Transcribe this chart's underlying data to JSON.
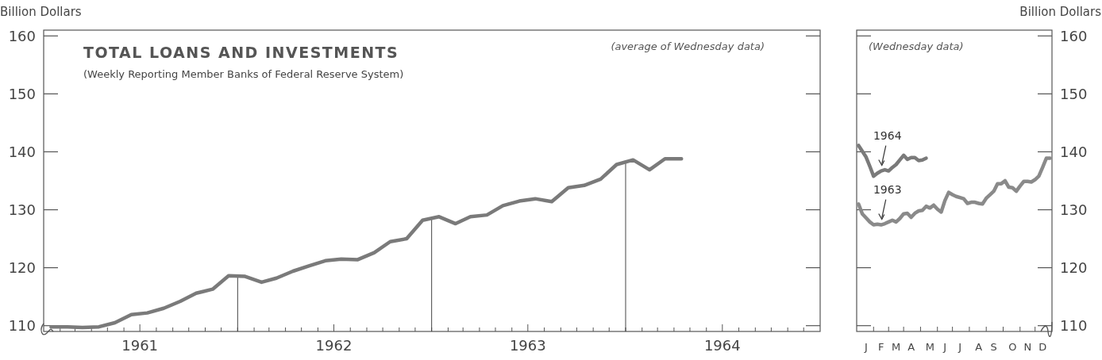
{
  "chart_data": [
    {
      "type": "line",
      "title": "TOTAL LOANS AND INVESTMENTS",
      "subtitle": "(Weekly Reporting Member Banks of Federal Reserve System)",
      "ylabel": "Billion Dollars",
      "annotations": [
        "(average of Wednesday data)"
      ],
      "x": [
        "1961-01-15",
        "1961-02-15",
        "1961-03-15",
        "1961-04-15",
        "1961-05-15",
        "1961-06-15",
        "1961-07-15",
        "1961-08-15",
        "1961-09-15",
        "1961-10-15",
        "1961-11-15",
        "1961-12-15",
        "1962-01-15",
        "1962-02-15",
        "1962-03-15",
        "1962-04-15",
        "1962-05-15",
        "1962-06-15",
        "1962-07-15",
        "1962-08-15",
        "1962-09-15",
        "1962-10-15",
        "1962-11-15",
        "1962-12-15",
        "1963-01-15",
        "1963-02-15",
        "1963-03-15",
        "1963-04-15",
        "1963-05-15",
        "1963-06-15",
        "1963-07-15",
        "1963-08-15",
        "1963-09-15",
        "1963-10-15",
        "1963-11-15",
        "1963-12-15",
        "1964-01-15",
        "1964-02-15",
        "1964-03-15",
        "1964-04-15"
      ],
      "series": [
        {
          "color": "#7a7a7a",
          "values": [
            109.8,
            109.8,
            109.7,
            109.8,
            110.5,
            111.9,
            112.2,
            113.0,
            114.2,
            115.6,
            116.3,
            118.6,
            118.5,
            117.5,
            118.2,
            119.4,
            120.3,
            121.2,
            121.5,
            121.4,
            122.6,
            124.5,
            125.0,
            128.2,
            128.8,
            127.6,
            128.8,
            129.1,
            130.7,
            131.5,
            131.9,
            131.4,
            133.8,
            134.2,
            135.3,
            137.8,
            138.6,
            136.9,
            138.8,
            138.8
          ]
        }
      ],
      "xlim": [
        "1961-01",
        "1965-01"
      ],
      "xticks": [
        {
          "value": "1961-02",
          "label": null
        },
        {
          "value": "1961-03",
          "label": null
        },
        {
          "value": "1961-04",
          "label": null
        },
        {
          "value": "1961-05",
          "label": null
        },
        {
          "value": "1961-06",
          "label": null
        },
        {
          "value": "1961-07",
          "label": "1961"
        },
        {
          "value": "1961-08",
          "label": null
        },
        {
          "value": "1961-09",
          "label": null
        },
        {
          "value": "1961-10",
          "label": null
        },
        {
          "value": "1961-11",
          "label": null
        },
        {
          "value": "1961-12",
          "label": null
        },
        {
          "value": "1962-01",
          "label": null
        },
        {
          "value": "1962-02",
          "label": null
        },
        {
          "value": "1962-03",
          "label": null
        },
        {
          "value": "1962-04",
          "label": null
        },
        {
          "value": "1962-05",
          "label": null
        },
        {
          "value": "1962-06",
          "label": null
        },
        {
          "value": "1962-07",
          "label": "1962"
        },
        {
          "value": "1962-08",
          "label": null
        },
        {
          "value": "1962-09",
          "label": null
        },
        {
          "value": "1962-10",
          "label": null
        },
        {
          "value": "1962-11",
          "label": null
        },
        {
          "value": "1962-12",
          "label": null
        },
        {
          "value": "1963-01",
          "label": null
        },
        {
          "value": "1963-02",
          "label": null
        },
        {
          "value": "1963-03",
          "label": null
        },
        {
          "value": "1963-04",
          "label": null
        },
        {
          "value": "1963-05",
          "label": null
        },
        {
          "value": "1963-06",
          "label": null
        },
        {
          "value": "1963-07",
          "label": "1963"
        },
        {
          "value": "1963-08",
          "label": null
        },
        {
          "value": "1963-09",
          "label": null
        },
        {
          "value": "1963-10",
          "label": null
        },
        {
          "value": "1963-11",
          "label": null
        },
        {
          "value": "1963-12",
          "label": null
        },
        {
          "value": "1964-01",
          "label": null
        },
        {
          "value": "1964-02",
          "label": null
        },
        {
          "value": "1964-03",
          "label": null
        },
        {
          "value": "1964-04",
          "label": null
        },
        {
          "value": "1964-05",
          "label": null
        },
        {
          "value": "1964-06",
          "label": null
        },
        {
          "value": "1964-07",
          "label": "1964"
        },
        {
          "value": "1964-08",
          "label": null
        },
        {
          "value": "1964-09",
          "label": null
        },
        {
          "value": "1964-10",
          "label": null
        },
        {
          "value": "1964-11",
          "label": null
        },
        {
          "value": "1964-12",
          "label": null
        }
      ],
      "ylim": [
        109,
        161
      ],
      "yticks": [
        110,
        120,
        130,
        140,
        150,
        160
      ],
      "ref_lines": [
        {
          "axis": "x",
          "value": "1962-01",
          "color": "#444444"
        },
        {
          "axis": "x",
          "value": "1963-01",
          "color": "#444444"
        },
        {
          "axis": "x",
          "value": "1964-01",
          "color": "#444444"
        }
      ]
    },
    {
      "type": "line",
      "y2label": "Billion Dollars",
      "annotations": [
        "(Wednesday data)",
        "1964",
        "1963"
      ],
      "categories": [
        null,
        null,
        "J",
        null,
        null,
        null,
        "F",
        null,
        null,
        null,
        "M",
        null,
        null,
        null,
        "A",
        null,
        null,
        null,
        null,
        "M",
        null,
        null,
        null,
        "J",
        null,
        null,
        null,
        "J",
        null,
        null,
        null,
        null,
        "A",
        null,
        null,
        null,
        "S",
        null,
        null,
        null,
        null,
        "O",
        null,
        null,
        null,
        "N",
        null,
        null,
        null,
        "D",
        null,
        null
      ],
      "series": [
        {
          "color": "#7a7a7a",
          "axis": "y2",
          "values": [
            141.1,
            140.1,
            139.1,
            137.5,
            135.8,
            136.3,
            136.7,
            136.9,
            136.7,
            137.3,
            137.8,
            138.6,
            139.4,
            138.7,
            139.0,
            139.0,
            138.5,
            138.6,
            138.9,
            null,
            null,
            null,
            null,
            null,
            null,
            null,
            null,
            null,
            null,
            null,
            null,
            null,
            null,
            null,
            null,
            null,
            null,
            null,
            null,
            null,
            null,
            null,
            null,
            null,
            null,
            null,
            null,
            null,
            null,
            null,
            null,
            null
          ]
        },
        {
          "color": "#8a8a8a",
          "axis": "y2",
          "values": [
            131.0,
            129.3,
            128.6,
            127.9,
            127.4,
            127.5,
            127.4,
            127.6,
            127.9,
            128.2,
            127.9,
            128.5,
            129.3,
            129.4,
            128.7,
            129.4,
            129.8,
            129.9,
            130.6,
            130.3,
            130.8,
            130.1,
            129.6,
            131.6,
            133.0,
            132.6,
            132.3,
            132.1,
            131.9,
            131.1,
            131.3,
            131.3,
            131.1,
            131.0,
            132.0,
            132.6,
            133.2,
            134.5,
            134.5,
            135.0,
            133.9,
            133.8,
            133.2,
            134.1,
            134.9,
            134.9,
            134.8,
            135.2,
            135.8,
            137.3,
            138.9,
            138.9
          ]
        }
      ],
      "y2lim": [
        109,
        161
      ],
      "y2ticks": [
        110,
        120,
        130,
        140,
        150,
        160
      ]
    }
  ]
}
